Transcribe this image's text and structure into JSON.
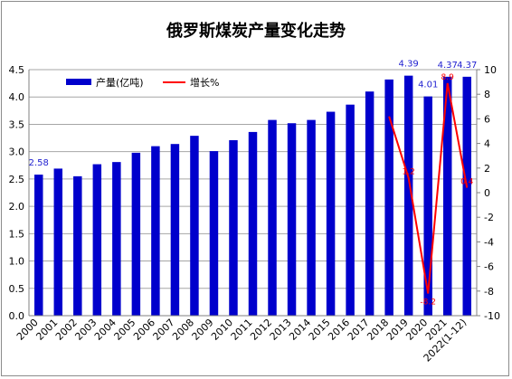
{
  "chart_data": {
    "type": "bar",
    "title": "俄罗斯煤炭产量变化走势",
    "categories": [
      "2000",
      "2001",
      "2002",
      "2003",
      "2004",
      "2005",
      "2006",
      "2007",
      "2008",
      "2009",
      "2010",
      "2011",
      "2012",
      "2013",
      "2014",
      "2015",
      "2016",
      "2017",
      "2018",
      "2019",
      "2020",
      "2021",
      "2022(1-12)"
    ],
    "series": [
      {
        "name": "产量(亿吨)",
        "axis": "left",
        "type": "bar",
        "color": "#0000cc",
        "values": [
          2.58,
          2.69,
          2.55,
          2.77,
          2.81,
          2.98,
          3.1,
          3.14,
          3.29,
          3.01,
          3.21,
          3.36,
          3.58,
          3.52,
          3.58,
          3.73,
          3.86,
          4.1,
          4.32,
          4.39,
          4.01,
          4.37,
          4.37
        ]
      },
      {
        "name": "增长%",
        "axis": "right",
        "type": "line",
        "color": "#ff0000",
        "values": [
          null,
          null,
          null,
          null,
          null,
          null,
          null,
          null,
          null,
          null,
          null,
          null,
          null,
          null,
          null,
          null,
          null,
          null,
          6.2,
          1.2,
          -8.2,
          8.9,
          0.4
        ]
      }
    ],
    "bar_data_labels": [
      {
        "index": 0,
        "text": "2.58"
      },
      {
        "index": 19,
        "text": "4.39"
      },
      {
        "index": 20,
        "text": "4.01"
      },
      {
        "index": 21,
        "text": "4.37"
      },
      {
        "index": 22,
        "text": "4.37"
      }
    ],
    "line_data_labels": [
      {
        "index": 19,
        "text": "1.2"
      },
      {
        "index": 20,
        "text": "-8.2"
      },
      {
        "index": 21,
        "text": "8.9"
      },
      {
        "index": 22,
        "text": "0.4"
      }
    ],
    "ylim_left": [
      0,
      4.5
    ],
    "yticks_left": [
      "0.0",
      "0.5",
      "1.0",
      "1.5",
      "2.0",
      "2.5",
      "3.0",
      "3.5",
      "4.0",
      "4.5"
    ],
    "ylim_right": [
      -10,
      10
    ],
    "yticks_right": [
      "-10",
      "-8",
      "-6",
      "-4",
      "-2",
      "0",
      "2",
      "4",
      "6",
      "8",
      "10"
    ],
    "grid": "horizontal",
    "legend_position": "top-left"
  }
}
